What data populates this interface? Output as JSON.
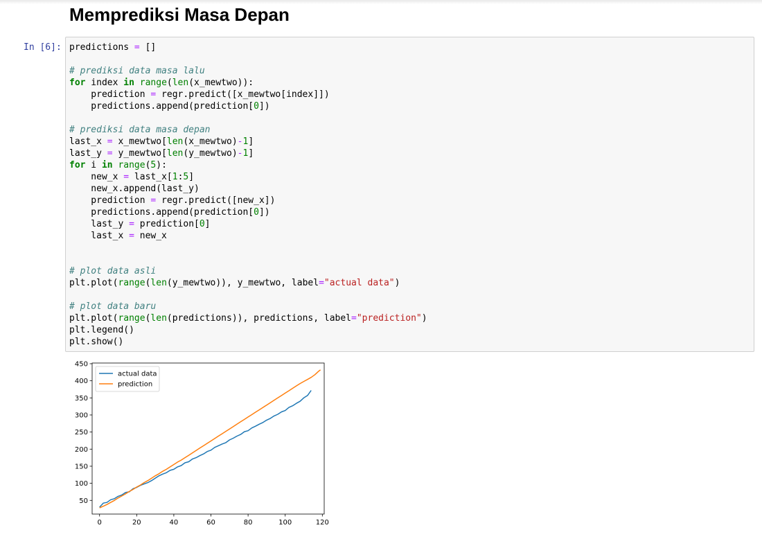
{
  "notebook": {
    "heading": "Memprediksi Masa Depan",
    "cell": {
      "prompt": "In [6]:",
      "code_lines": [
        "predictions = []",
        "",
        "# prediksi data masa lalu",
        "for index in range(len(x_mewtwo)):",
        "    prediction = regr.predict([x_mewtwo[index]])",
        "    predictions.append(prediction[0])",
        "",
        "# prediksi data masa depan",
        "last_x = x_mewtwo[len(x_mewtwo)-1]",
        "last_y = y_mewtwo[len(y_mewtwo)-1]",
        "for i in range(5):",
        "    new_x = last_x[1:5]",
        "    new_x.append(last_y)",
        "    prediction = regr.predict([new_x])",
        "    predictions.append(prediction[0])",
        "    last_y = prediction[0]",
        "    last_x = new_x",
        "",
        "",
        "# plot data asli",
        "plt.plot(range(len(y_mewtwo)), y_mewtwo, label=\"actual data\")",
        "",
        "# plot data baru",
        "plt.plot(range(len(predictions)), predictions, label=\"prediction\")",
        "plt.legend()",
        "plt.show()"
      ]
    }
  },
  "chart_data": {
    "type": "line",
    "xlim": [
      -4,
      121
    ],
    "ylim": [
      10,
      452
    ],
    "x_ticks": [
      0,
      20,
      40,
      60,
      80,
      100,
      120
    ],
    "y_ticks": [
      50,
      100,
      150,
      200,
      250,
      300,
      350,
      400,
      450
    ],
    "legend_position": "top-left",
    "grid": false,
    "series": [
      {
        "name": "actual data",
        "color": "#1f77b4",
        "x": [
          0,
          2,
          4,
          6,
          8,
          10,
          12,
          14,
          16,
          18,
          20,
          22,
          24,
          26,
          28,
          30,
          32,
          34,
          36,
          38,
          40,
          42,
          44,
          46,
          48,
          50,
          52,
          54,
          56,
          58,
          60,
          62,
          64,
          66,
          68,
          70,
          72,
          74,
          76,
          78,
          80,
          82,
          84,
          86,
          88,
          90,
          92,
          94,
          96,
          98,
          100,
          102,
          104,
          106,
          108,
          110,
          112,
          114
        ],
        "y": [
          30,
          42,
          44,
          52,
          55,
          62,
          66,
          73,
          75,
          84,
          88,
          94,
          98,
          102,
          108,
          115,
          122,
          127,
          131,
          138,
          141,
          148,
          152,
          160,
          163,
          171,
          175,
          181,
          186,
          193,
          197,
          205,
          210,
          215,
          219,
          227,
          232,
          238,
          243,
          251,
          254,
          262,
          267,
          273,
          278,
          285,
          290,
          297,
          302,
          309,
          313,
          322,
          327,
          334,
          340,
          350,
          357,
          372
        ]
      },
      {
        "name": "prediction",
        "color": "#ff7f0e",
        "x": [
          0,
          2,
          4,
          6,
          8,
          10,
          12,
          14,
          16,
          18,
          20,
          22,
          24,
          26,
          28,
          30,
          32,
          34,
          36,
          38,
          40,
          42,
          44,
          46,
          48,
          50,
          52,
          54,
          56,
          58,
          60,
          62,
          64,
          66,
          68,
          70,
          72,
          74,
          76,
          78,
          80,
          82,
          84,
          86,
          88,
          90,
          92,
          94,
          96,
          98,
          100,
          102,
          104,
          106,
          108,
          110,
          112,
          114,
          116,
          118,
          119
        ],
        "y": [
          28,
          33,
          38,
          44,
          50,
          57,
          63,
          69,
          76,
          82,
          89,
          95,
          102,
          108,
          115,
          122,
          128,
          135,
          141,
          148,
          155,
          162,
          168,
          175,
          182,
          189,
          196,
          203,
          210,
          217,
          224,
          231,
          238,
          245,
          252,
          259,
          266,
          273,
          280,
          287,
          294,
          301,
          308,
          315,
          322,
          329,
          336,
          343,
          350,
          357,
          364,
          371,
          378,
          385,
          392,
          398,
          404,
          410,
          418,
          428,
          432
        ]
      }
    ]
  }
}
